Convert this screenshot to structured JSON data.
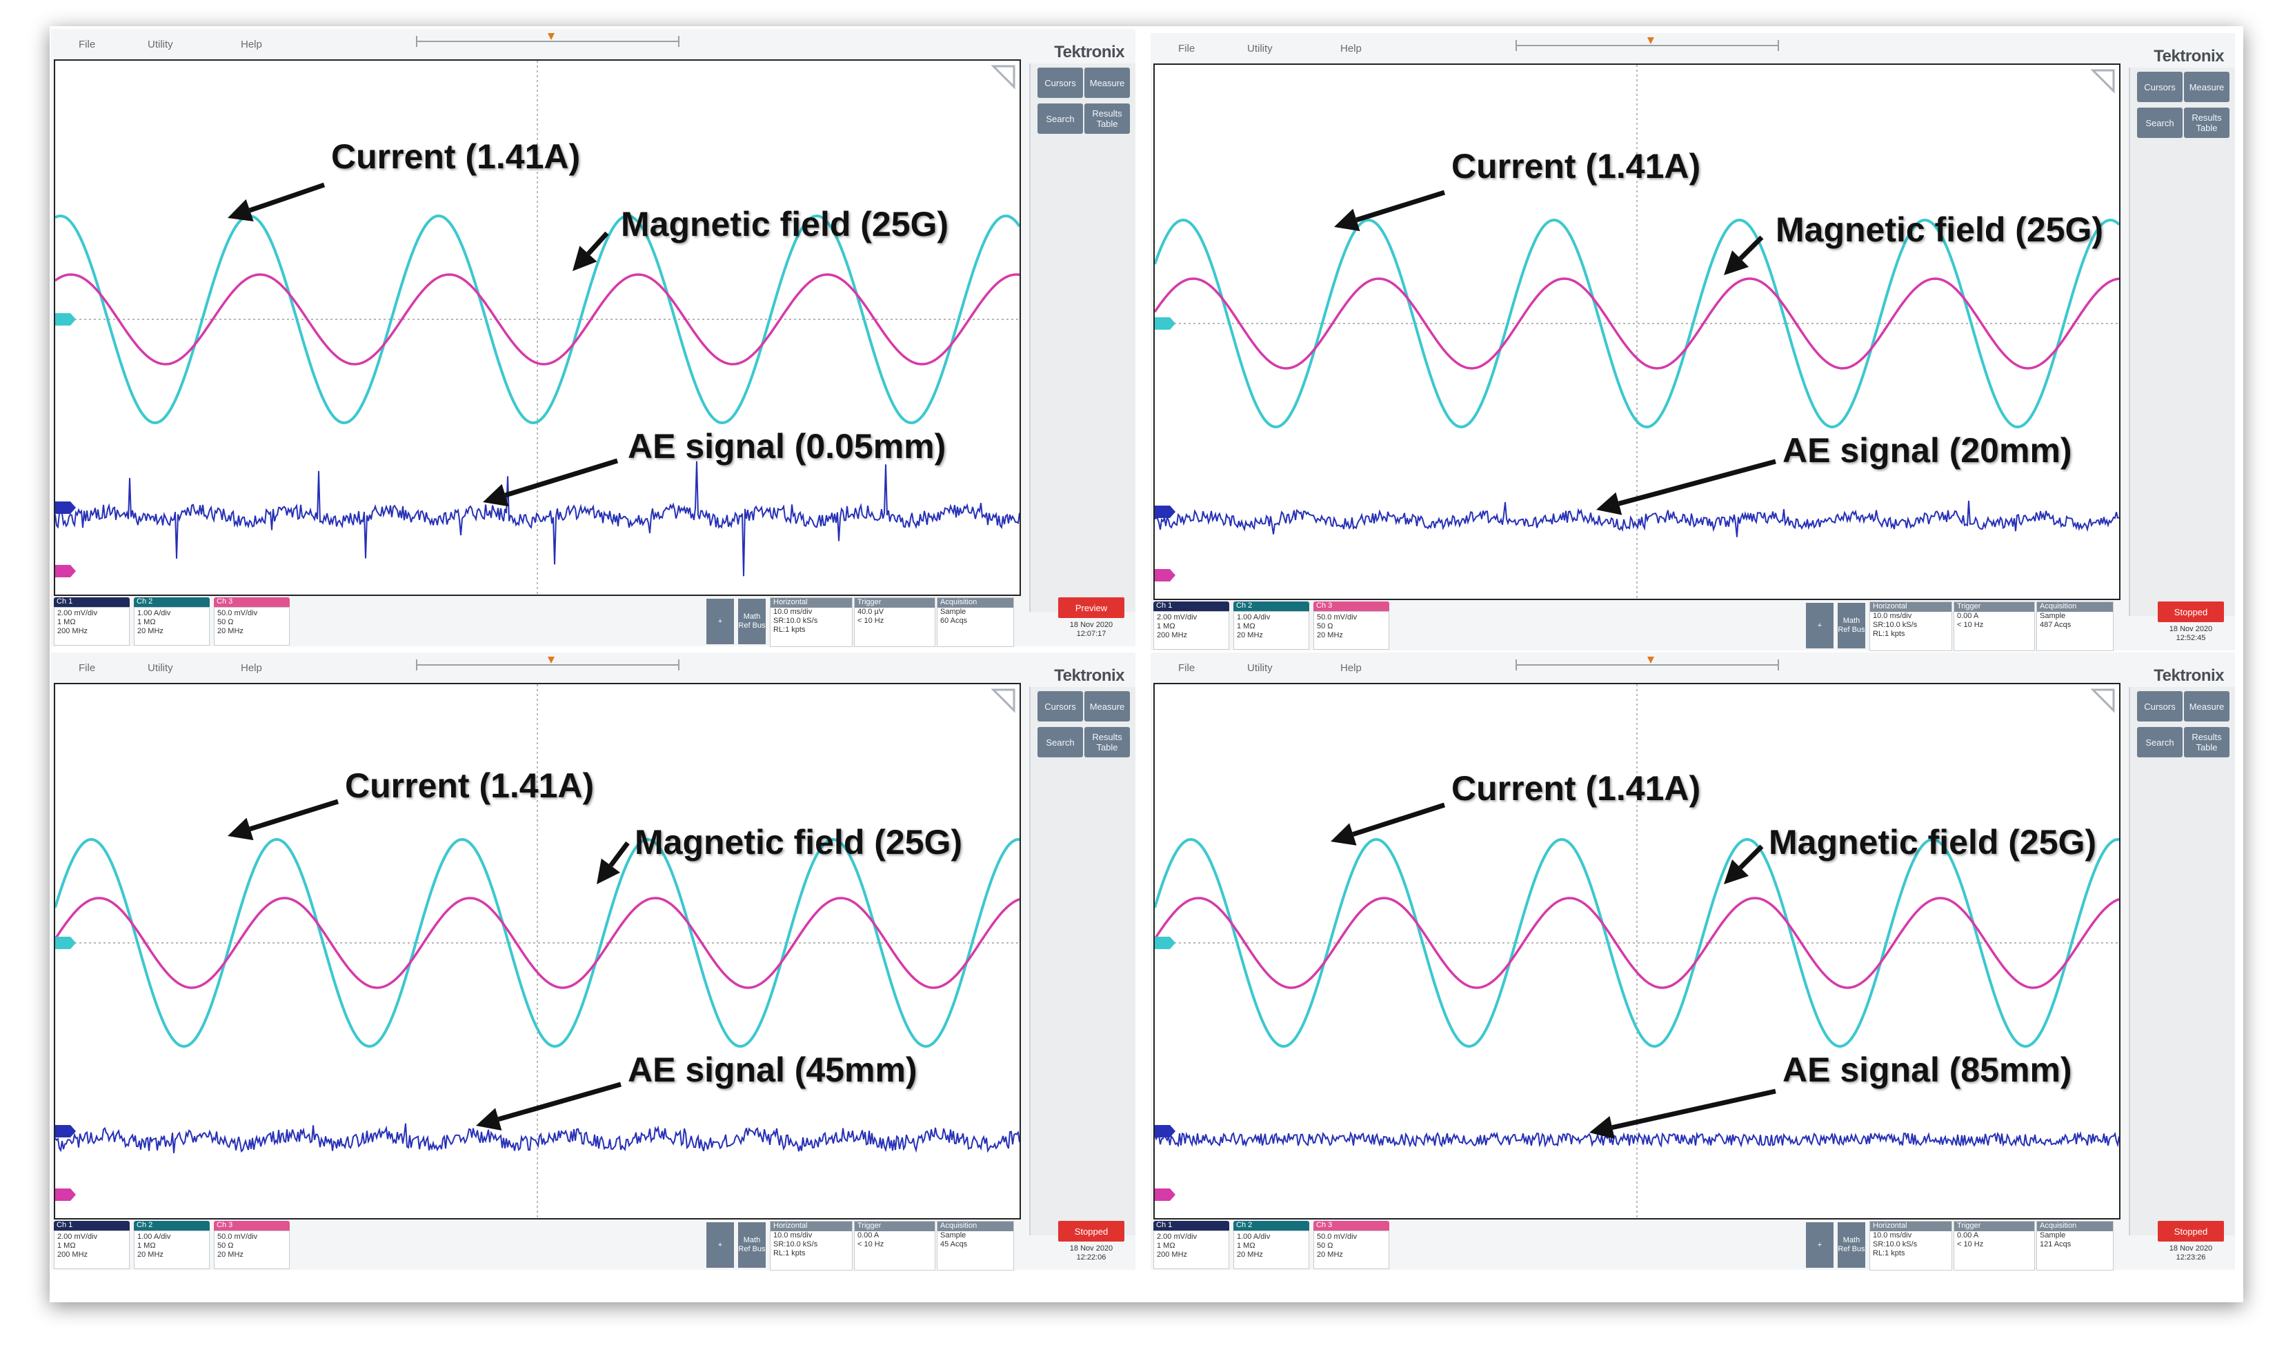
{
  "menu": [
    "File",
    "Utility",
    "Help"
  ],
  "brand": "Tektronix",
  "right_panel": {
    "buttons": [
      "Cursors",
      "Measure",
      "Search",
      "Results Table"
    ]
  },
  "status": {
    "channels": [
      {
        "label": "Ch 1",
        "lines": [
          "2.00 mV/div",
          "1 MΩ",
          "200 MHz"
        ],
        "color": "#1f2a5c"
      },
      {
        "label": "Ch 2",
        "lines": [
          "1.00 A/div",
          "1 MΩ",
          "20 MHz"
        ],
        "color": "#15707c"
      },
      {
        "label": "Ch 3",
        "lines": [
          "50.0 mV/div",
          "50 Ω",
          "20 MHz"
        ],
        "color": "#e0538f"
      }
    ],
    "side_controls": [
      "+",
      "Math Ref Bus"
    ],
    "horizontal": {
      "title": "Horizontal",
      "lines": [
        "10.0 ms/div",
        "SR:10.0 kS/s",
        "RL:1 kpts"
      ]
    },
    "trigger_title": "Trigger",
    "acquisition_title": "Acquisition"
  },
  "colors": {
    "current": "#3cc8cf",
    "magnetic": "#d63aa8",
    "ae": "#2630b6",
    "arrow": "#111111",
    "running": "#e0332f"
  },
  "panels": [
    {
      "annotations": {
        "current": "Current (1.41A)",
        "magnetic": "Magnetic field (25G)",
        "ae": "AE signal (0.05mm)"
      },
      "trigger": [
        "40.0 µV",
        "< 10 Hz"
      ],
      "acquisition": [
        "Sample",
        "60 Acqs"
      ],
      "state": "Preview",
      "date": [
        "18 Nov 2020",
        "12:07:17"
      ]
    },
    {
      "annotations": {
        "current": "Current (1.41A)",
        "magnetic": "Magnetic field (25G)",
        "ae": "AE signal (20mm)"
      },
      "trigger": [
        "0.00 A",
        "< 10 Hz"
      ],
      "acquisition": [
        "Sample",
        "487 Acqs"
      ],
      "state": "Stopped",
      "date": [
        "18 Nov 2020",
        "12:52:45"
      ]
    },
    {
      "annotations": {
        "current": "Current (1.41A)",
        "magnetic": "Magnetic field (25G)",
        "ae": "AE signal (45mm)"
      },
      "trigger": [
        "0.00 A",
        "< 10 Hz"
      ],
      "acquisition": [
        "Sample",
        "45 Acqs"
      ],
      "state": "Stopped",
      "date": [
        "18 Nov 2020",
        "12:22:06"
      ]
    },
    {
      "annotations": {
        "current": "Current (1.41A)",
        "magnetic": "Magnetic field (25G)",
        "ae": "AE signal (85mm)"
      },
      "trigger": [
        "0.00 A",
        "< 10 Hz"
      ],
      "acquisition": [
        "Sample",
        "121 Acqs"
      ],
      "state": "Stopped",
      "date": [
        "18 Nov 2020",
        "12:23:26"
      ]
    }
  ],
  "chart_data": [
    {
      "type": "line",
      "x": {
        "unit": "ms",
        "range": [
          0,
          100
        ],
        "divisions": 10
      },
      "series": [
        {
          "name": "Current (1.41A)",
          "peak": 1.41,
          "unit": "A",
          "cycles": 5.1,
          "phase_deg": 80
        },
        {
          "name": "Magnetic field (25G)",
          "peak": 25,
          "unit": "G",
          "cycles": 5.1,
          "phase_deg": 60
        },
        {
          "name": "AE signal (0.05mm)",
          "spikes_per_cycle": 2,
          "spike_level": 5,
          "noise_level": 0.6
        }
      ]
    },
    {
      "type": "line",
      "x": {
        "unit": "ms",
        "range": [
          0,
          100
        ],
        "divisions": 10
      },
      "series": [
        {
          "name": "Current (1.41A)",
          "peak": 1.41,
          "unit": "A",
          "cycles": 5.2,
          "phase_deg": 35
        },
        {
          "name": "Magnetic field (25G)",
          "peak": 25,
          "unit": "G",
          "cycles": 5.2,
          "phase_deg": 15
        },
        {
          "name": "AE signal (20mm)",
          "spikes_per_cycle": 2,
          "spike_level": 1.2,
          "noise_level": 0.5
        }
      ]
    },
    {
      "type": "line",
      "x": {
        "unit": "ms",
        "range": [
          0,
          100
        ],
        "divisions": 10
      },
      "series": [
        {
          "name": "Current (1.41A)",
          "peak": 1.41,
          "unit": "A",
          "cycles": 5.2,
          "phase_deg": 20
        },
        {
          "name": "Magnetic field (25G)",
          "peak": 25,
          "unit": "G",
          "cycles": 5.2,
          "phase_deg": 5
        },
        {
          "name": "AE signal (45mm)",
          "spikes_per_cycle": 2,
          "spike_level": 1.0,
          "noise_level": 0.6
        }
      ]
    },
    {
      "type": "line",
      "x": {
        "unit": "ms",
        "range": [
          0,
          100
        ],
        "divisions": 10
      },
      "series": [
        {
          "name": "Current (1.41A)",
          "peak": 1.41,
          "unit": "A",
          "cycles": 5.2,
          "phase_deg": 20
        },
        {
          "name": "Magnetic field (25G)",
          "peak": 25,
          "unit": "G",
          "cycles": 5.2,
          "phase_deg": 5
        },
        {
          "name": "AE signal (85mm)",
          "spikes_per_cycle": 0,
          "spike_level": 0,
          "noise_level": 0.5
        }
      ]
    }
  ]
}
